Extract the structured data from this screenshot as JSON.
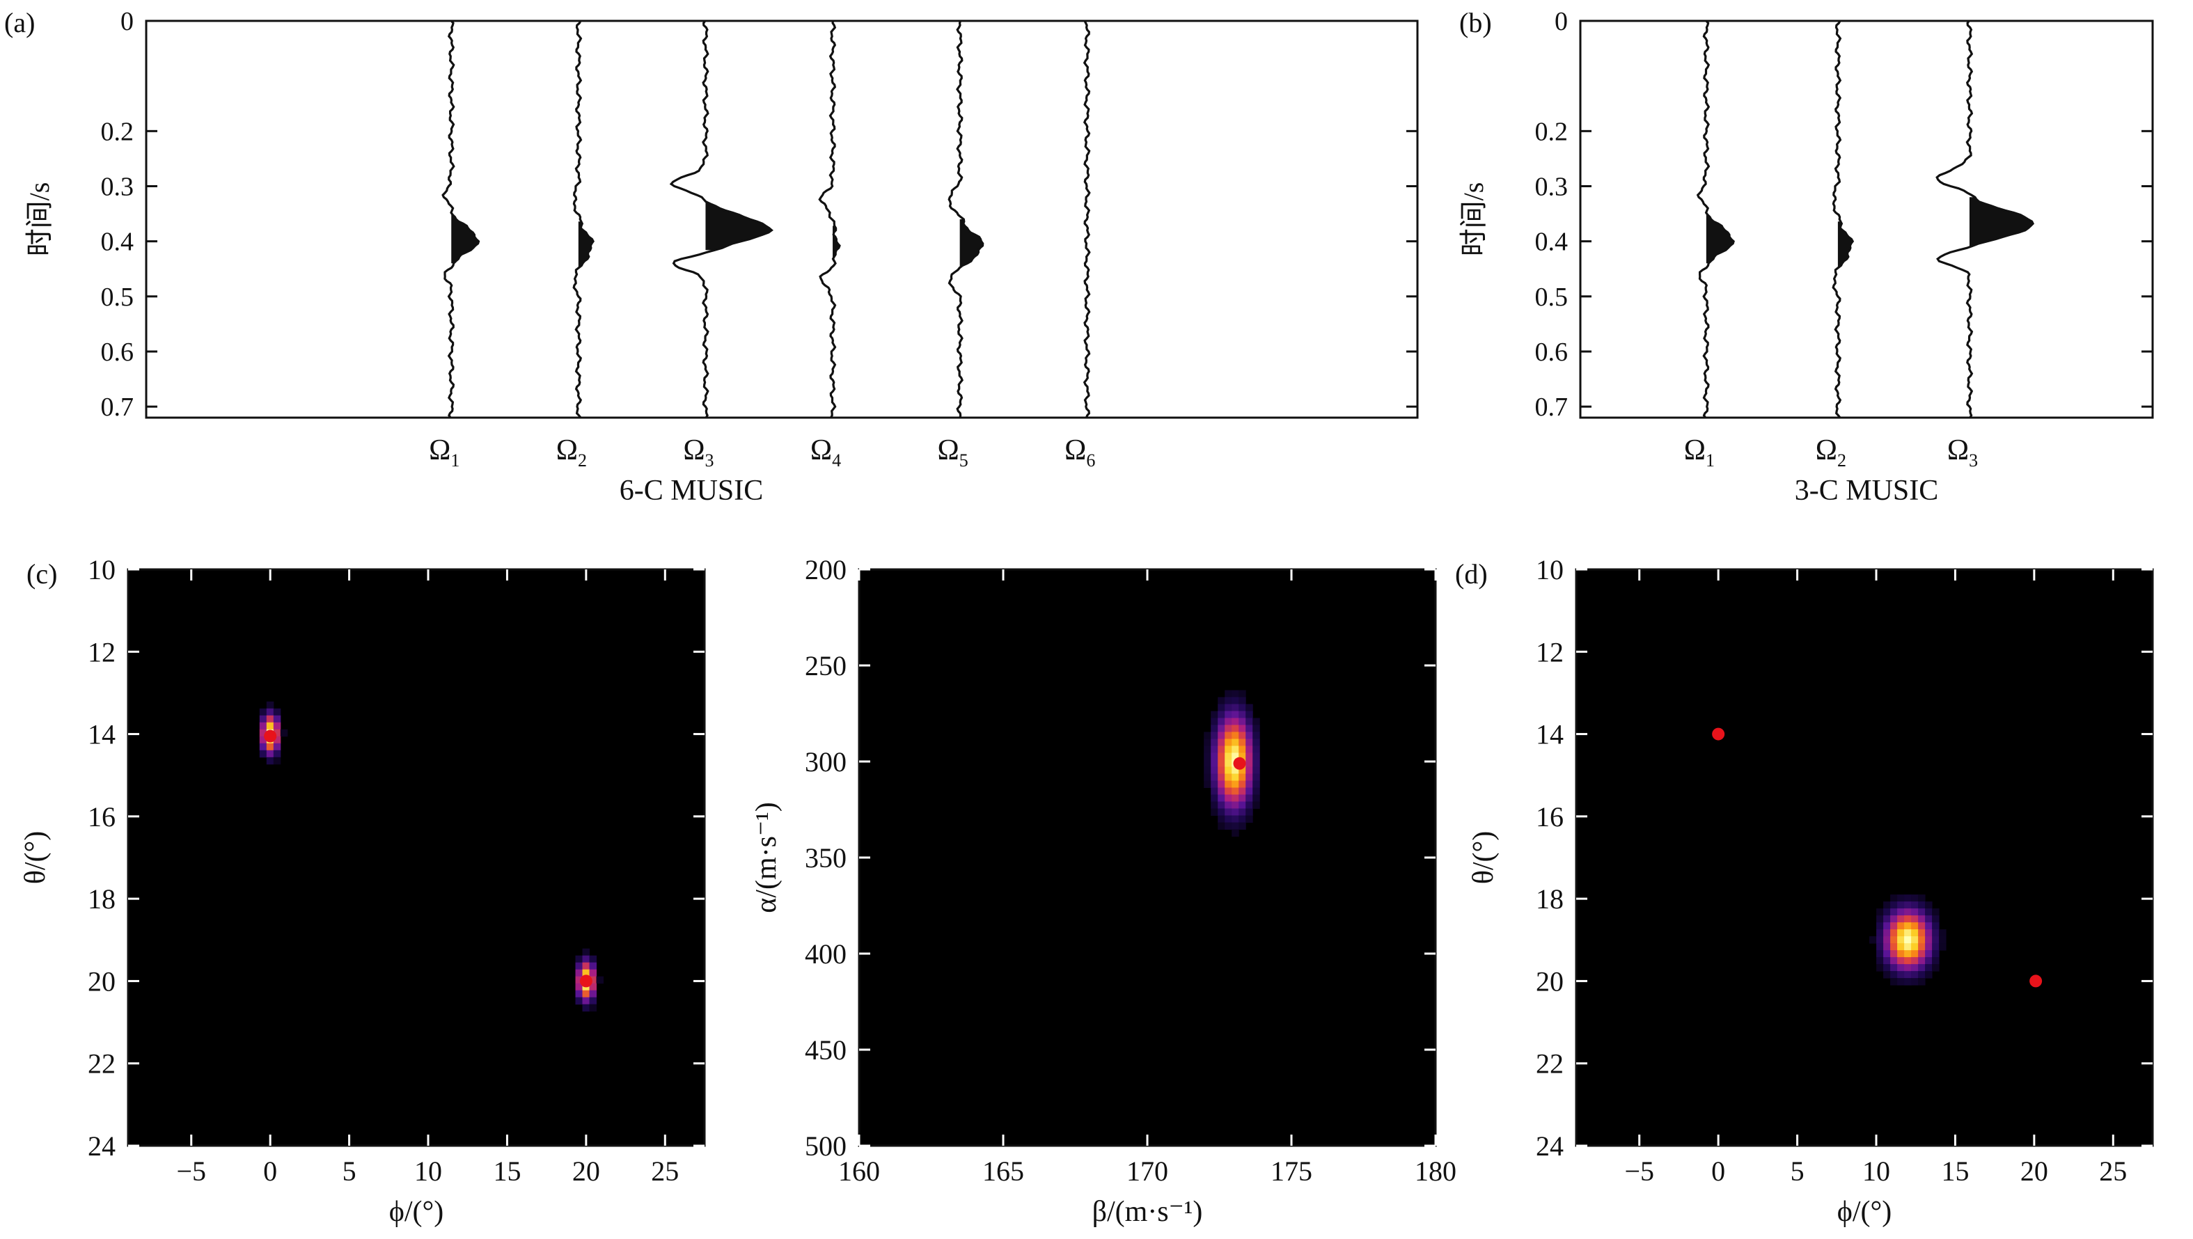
{
  "panel_labels": {
    "a": "(a)",
    "b": "(b)",
    "c": "(c)",
    "d": "(d)"
  },
  "colors": {
    "background": "#ffffff",
    "axis": "#111111",
    "heatmap_bg": "#000000",
    "peak_marker": "#e8131b"
  },
  "chart_data": [
    {
      "id": "a",
      "type": "line",
      "title": "",
      "xlabel": "6-C MUSIC",
      "ylabel": "时间/s",
      "ylim": [
        0,
        0.72
      ],
      "yticks": [
        0,
        0.2,
        0.3,
        0.4,
        0.5,
        0.6,
        0.7
      ],
      "y_inverted": true,
      "categories": [
        "Ω1",
        "Ω2",
        "Ω3",
        "Ω4",
        "Ω5",
        "Ω6"
      ],
      "category_positions": [
        2.4,
        3.4,
        4.4,
        5.4,
        6.4,
        7.4
      ],
      "xlim": [
        0,
        10
      ],
      "series": [
        {
          "category": "Ω1",
          "peak_time": 0.4,
          "amplitude": 0.35,
          "sidelobe": 0.08
        },
        {
          "category": "Ω2",
          "peak_time": 0.41,
          "amplitude": 0.18,
          "sidelobe": 0.06
        },
        {
          "category": "Ω3",
          "peak_time": 0.38,
          "amplitude": 0.85,
          "sidelobe": 0.42
        },
        {
          "category": "Ω4",
          "peak_time": 0.41,
          "amplitude": 0.06,
          "sidelobe": 0.15
        },
        {
          "category": "Ω5",
          "peak_time": 0.41,
          "amplitude": 0.3,
          "sidelobe": 0.15
        },
        {
          "category": "Ω6",
          "peak_time": 0.4,
          "amplitude": 0.0,
          "sidelobe": 0.0
        }
      ]
    },
    {
      "id": "b",
      "type": "line",
      "title": "",
      "xlabel": "3-C MUSIC",
      "ylabel": "时间/s",
      "ylim": [
        0,
        0.72
      ],
      "yticks": [
        0,
        0.2,
        0.3,
        0.4,
        0.5,
        0.6,
        0.7
      ],
      "y_inverted": true,
      "categories": [
        "Ω1",
        "Ω2",
        "Ω3"
      ],
      "category_positions": [
        2.2,
        4.5,
        6.8
      ],
      "xlim": [
        0,
        10
      ],
      "series": [
        {
          "category": "Ω1",
          "peak_time": 0.4,
          "amplitude": 0.35,
          "sidelobe": 0.08
        },
        {
          "category": "Ω2",
          "peak_time": 0.41,
          "amplitude": 0.18,
          "sidelobe": 0.06
        },
        {
          "category": "Ω3",
          "peak_time": 0.37,
          "amplitude": 0.85,
          "sidelobe": 0.42
        }
      ]
    },
    {
      "id": "c-left",
      "type": "heatmap",
      "title": "",
      "xlabel": "ϕ/(°)",
      "ylabel": "θ/(°)",
      "xlim": [
        -9,
        27.5
      ],
      "ylim": [
        10,
        24
      ],
      "xticks": [
        -5,
        0,
        5,
        10,
        15,
        20,
        25
      ],
      "yticks": [
        10,
        12,
        14,
        16,
        18,
        20,
        22,
        24
      ],
      "y_inverted": true,
      "grid": false,
      "blobs": [
        {
          "x": 0,
          "y": 14,
          "sx": 0.35,
          "sy": 0.3
        },
        {
          "x": 20,
          "y": 20,
          "sx": 0.35,
          "sy": 0.3
        }
      ],
      "markers": [
        {
          "x": 0,
          "y": 14.05
        },
        {
          "x": 20,
          "y": 20
        }
      ]
    },
    {
      "id": "c-right",
      "type": "heatmap",
      "title": "",
      "xlabel": "β/(m·s⁻¹)",
      "ylabel": "α/(m·s⁻¹)",
      "xlim": [
        160,
        180
      ],
      "ylim": [
        200,
        500
      ],
      "xticks": [
        160,
        165,
        170,
        175,
        180
      ],
      "yticks": [
        200,
        250,
        300,
        350,
        400,
        450,
        500
      ],
      "y_inverted": true,
      "grid": false,
      "blobs": [
        {
          "x": 173,
          "y": 300,
          "sx": 0.4,
          "sy": 15
        }
      ],
      "markers": [
        {
          "x": 173.2,
          "y": 301
        }
      ]
    },
    {
      "id": "d",
      "type": "heatmap",
      "title": "",
      "xlabel": "ϕ/(°)",
      "ylabel": "θ/(°)",
      "xlim": [
        -9,
        27.5
      ],
      "ylim": [
        10,
        24
      ],
      "xticks": [
        -5,
        0,
        5,
        10,
        15,
        20,
        25
      ],
      "yticks": [
        10,
        12,
        14,
        16,
        18,
        20,
        22,
        24
      ],
      "y_inverted": true,
      "grid": false,
      "blobs": [
        {
          "x": 12,
          "y": 19,
          "sx": 0.9,
          "sy": 0.45
        }
      ],
      "markers": [
        {
          "x": 0,
          "y": 14
        },
        {
          "x": 20.1,
          "y": 20
        }
      ]
    }
  ]
}
